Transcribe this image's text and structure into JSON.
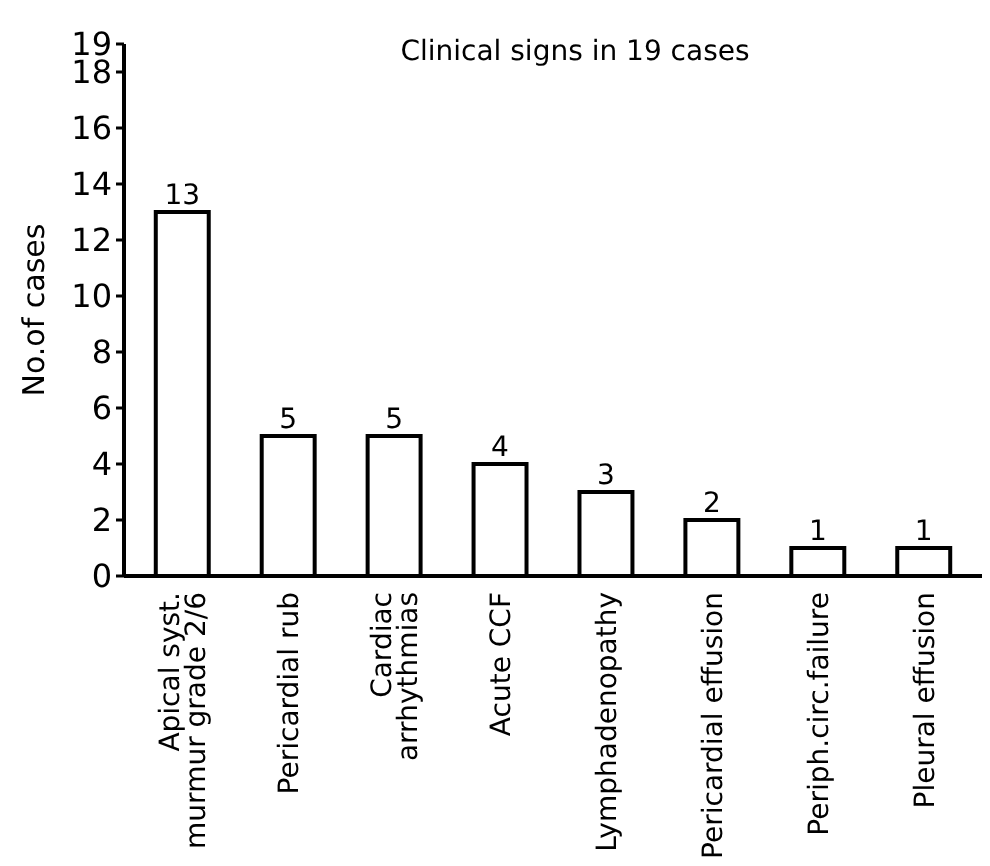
{
  "chart_data": {
    "type": "bar",
    "title": "Clinical signs in 19 cases",
    "ylabel": "No.of cases",
    "categories": [
      "Apical syst.\nmurmur grade 2/6",
      "Pericardial rub",
      "Cardiac\narrhythmias",
      "Acute CCF",
      "Lymphadenopathy",
      "Pericardial effusion",
      "Periph.circ.failure",
      "Pleural effusion"
    ],
    "values": [
      13,
      5,
      5,
      4,
      3,
      2,
      1,
      1
    ],
    "color": "#ffffff",
    "ylim": [
      0,
      19
    ],
    "yticks": [
      0,
      2,
      4,
      6,
      8,
      10,
      12,
      14,
      16,
      18,
      19
    ],
    "data_labels": true,
    "grid": false
  }
}
